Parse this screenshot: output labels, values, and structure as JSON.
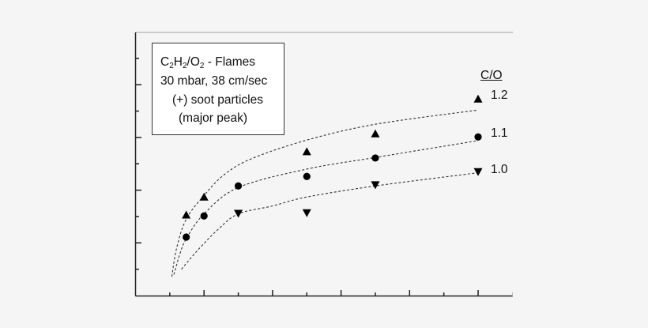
{
  "chart_data": {
    "type": "scatter",
    "title": "",
    "xlabel": "",
    "ylabel": "",
    "x_ticks": {
      "major": [
        1,
        2,
        3,
        4,
        5
      ],
      "minor": [
        0.5,
        1.5,
        2.5,
        3.5,
        4.5
      ],
      "labels_shown": false
    },
    "y_ticks": {
      "major": [
        1,
        2,
        3,
        4
      ],
      "minor": [
        0.5,
        1.5,
        2.5,
        3.5,
        4.5
      ],
      "labels_shown": false
    },
    "xlim": [
      0,
      5.5
    ],
    "ylim": [
      0,
      5
    ],
    "grid": false,
    "units_note": "axis values in relative major-tick units (no tick labels visible)",
    "annotation": {
      "line1_parts": [
        "C",
        "2",
        "H",
        "2",
        "/O",
        "2",
        " - Flames"
      ],
      "line2": "30 mbar, 38 cm/sec",
      "line3": "(+) soot particles",
      "line4": "(major peak)"
    },
    "legend": {
      "title": "C/O",
      "position": "right"
    },
    "series": [
      {
        "name": "1.2",
        "marker": "triangle-up",
        "color": "#000000",
        "x": [
          0.74,
          1.0,
          2.5,
          3.5,
          5.0
        ],
        "y": [
          1.53,
          1.87,
          2.73,
          3.07,
          3.73
        ],
        "fit_curve": {
          "style": "dashed",
          "points": [
            [
              0.53,
              0.36
            ],
            [
              0.6,
              0.9
            ],
            [
              0.74,
              1.45
            ],
            [
              1.0,
              1.9
            ],
            [
              1.3,
              2.3
            ],
            [
              1.7,
              2.6
            ],
            [
              2.5,
              2.95
            ],
            [
              3.5,
              3.25
            ],
            [
              5.0,
              3.52
            ]
          ]
        }
      },
      {
        "name": "1.1",
        "marker": "circle",
        "color": "#000000",
        "x": [
          0.74,
          1.0,
          1.5,
          2.5,
          3.5,
          5.0
        ],
        "y": [
          1.11,
          1.51,
          2.08,
          2.26,
          2.61,
          3.01
        ],
        "fit_curve": {
          "style": "dashed",
          "points": [
            [
              0.56,
              0.4
            ],
            [
              0.65,
              0.8
            ],
            [
              0.75,
              1.1
            ],
            [
              1.0,
              1.55
            ],
            [
              1.5,
              2.05
            ],
            [
              2.5,
              2.4
            ],
            [
              3.5,
              2.62
            ],
            [
              5.0,
              2.94
            ]
          ]
        }
      },
      {
        "name": "1.0",
        "marker": "triangle-down",
        "color": "#000000",
        "x": [
          1.5,
          2.5,
          3.5,
          5.0
        ],
        "y": [
          1.56,
          1.57,
          2.1,
          2.35
        ],
        "fit_curve": {
          "style": "dashed",
          "points": [
            [
              0.67,
              0.5
            ],
            [
              0.9,
              0.85
            ],
            [
              1.2,
              1.25
            ],
            [
              1.5,
              1.55
            ],
            [
              2.0,
              1.7
            ],
            [
              2.5,
              1.87
            ],
            [
              3.5,
              2.08
            ],
            [
              5.0,
              2.33
            ]
          ]
        }
      }
    ]
  }
}
